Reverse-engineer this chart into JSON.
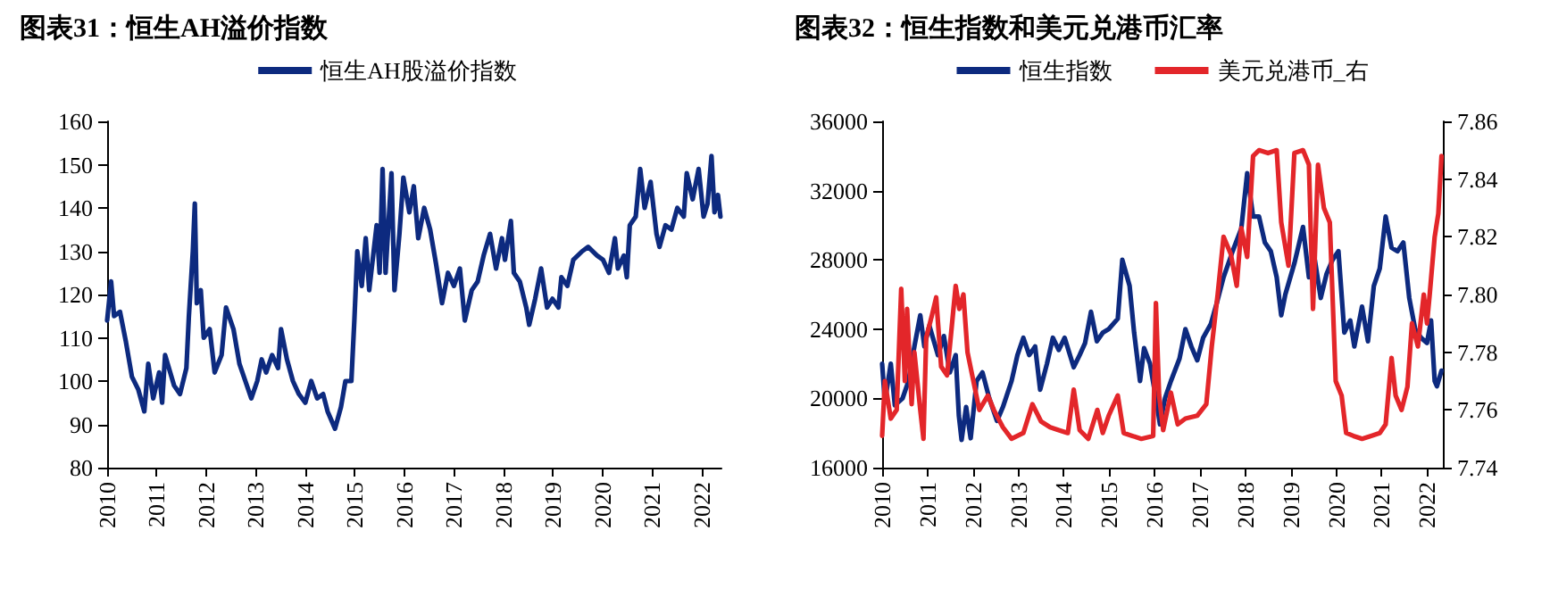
{
  "chart_data": [
    {
      "type": "line",
      "title": "图表31：恒生AH溢价指数",
      "legend": "top",
      "grid": false,
      "marker": "none",
      "line_style": "solid",
      "xlim": [
        2010,
        2022.4
      ],
      "xticks": [
        2010,
        2011,
        2012,
        2013,
        2014,
        2015,
        2016,
        2017,
        2018,
        2019,
        2020,
        2021,
        2022
      ],
      "ylim": [
        80,
        160
      ],
      "yticks": [
        80,
        90,
        100,
        110,
        120,
        130,
        140,
        150,
        160
      ],
      "series": [
        {
          "name": "恒生AH股溢价指数",
          "color": "#0d2a7f",
          "x": [
            2010,
            2010.08,
            2010.14,
            2010.26,
            2010.38,
            2010.5,
            2010.63,
            2010.75,
            2010.83,
            2010.93,
            2011.05,
            2011.11,
            2011.17,
            2011.35,
            2011.47,
            2011.6,
            2011.65,
            2011.73,
            2011.77,
            2011.81,
            2011.89,
            2011.95,
            2012.07,
            2012.17,
            2012.31,
            2012.4,
            2012.55,
            2012.67,
            2012.79,
            2012.91,
            2013.03,
            2013.12,
            2013.21,
            2013.33,
            2013.45,
            2013.51,
            2013.63,
            2013.75,
            2013.87,
            2014,
            2014.12,
            2014.24,
            2014.36,
            2014.45,
            2014.6,
            2014.72,
            2014.81,
            2014.93,
            2014.99,
            2015.05,
            2015.14,
            2015.22,
            2015.29,
            2015.44,
            2015.5,
            2015.56,
            2015.62,
            2015.74,
            2015.8,
            2015.9,
            2015.98,
            2016.1,
            2016.19,
            2016.28,
            2016.4,
            2016.52,
            2016.64,
            2016.76,
            2016.88,
            2017,
            2017.12,
            2017.22,
            2017.36,
            2017.48,
            2017.6,
            2017.73,
            2017.85,
            2017.97,
            2018.03,
            2018.15,
            2018.21,
            2018.33,
            2018.46,
            2018.52,
            2018.64,
            2018.76,
            2018.88,
            2018.99,
            2019.11,
            2019.17,
            2019.29,
            2019.41,
            2019.59,
            2019.71,
            2019.89,
            2020.01,
            2020.13,
            2020.25,
            2020.31,
            2020.43,
            2020.49,
            2020.55,
            2020.67,
            2020.76,
            2020.85,
            2020.97,
            2021.09,
            2021.15,
            2021.27,
            2021.39,
            2021.51,
            2021.64,
            2021.7,
            2021.82,
            2021.94,
            2022.04,
            2022.12,
            2022.2,
            2022.26,
            2022.33,
            2022.38
          ],
          "values": [
            114,
            123,
            115,
            116,
            109,
            101,
            98,
            93,
            104,
            96,
            102,
            95,
            106,
            99,
            97,
            103,
            115,
            130,
            141,
            118,
            121,
            110,
            112,
            102,
            106,
            117,
            112,
            104,
            100,
            96,
            100,
            105,
            102,
            106,
            103,
            112,
            105,
            100,
            97,
            95,
            100,
            96,
            97,
            93,
            89,
            94,
            100,
            100,
            114,
            130,
            122,
            133,
            121,
            136,
            125,
            149,
            125,
            148,
            121,
            134,
            147,
            139,
            145,
            133,
            140,
            135,
            127,
            118,
            125,
            122,
            126,
            114,
            121,
            123,
            129,
            134,
            126,
            133,
            128,
            137,
            125,
            123,
            117,
            113,
            119,
            126,
            117,
            119,
            117,
            124,
            122,
            128,
            130,
            131,
            129,
            128,
            125,
            133,
            126,
            129,
            124,
            136,
            138,
            149,
            140,
            146,
            134,
            131,
            136,
            135,
            140,
            138,
            148,
            142,
            149,
            138,
            141,
            152,
            139,
            143,
            138
          ]
        }
      ]
    },
    {
      "type": "line",
      "title": "图表32：恒生指数和美元兑港币汇率",
      "legend": "top",
      "grid": false,
      "marker": "none",
      "line_style": "solid",
      "xlim": [
        2010,
        2022.35
      ],
      "xticks": [
        2010,
        2011,
        2012,
        2013,
        2014,
        2015,
        2016,
        2017,
        2018,
        2019,
        2020,
        2021,
        2022
      ],
      "ylim": [
        16000,
        36000
      ],
      "yticks": [
        16000,
        20000,
        24000,
        28000,
        32000,
        36000
      ],
      "y2lim": [
        7.74,
        7.86
      ],
      "y2ticks": [
        {
          "value": 7.74,
          "label": "7.74"
        },
        {
          "value": 7.76,
          "label": "7.76"
        },
        {
          "value": 7.78,
          "label": "7.78"
        },
        {
          "value": 7.8,
          "label": "7.80"
        },
        {
          "value": 7.82,
          "label": "7.82"
        },
        {
          "value": 7.84,
          "label": "7.84"
        },
        {
          "value": 7.86,
          "label": "7.86"
        }
      ],
      "series": [
        {
          "name": "恒生指数",
          "color": "#0d2a7f",
          "x": [
            2010,
            2010.06,
            2010.19,
            2010.28,
            2010.45,
            2010.58,
            2010.71,
            2010.84,
            2010.93,
            2011.04,
            2011.23,
            2011.36,
            2011.49,
            2011.62,
            2011.69,
            2011.75,
            2011.85,
            2011.95,
            2012.08,
            2012.21,
            2012.36,
            2012.53,
            2012.66,
            2012.85,
            2012.98,
            2013.11,
            2013.24,
            2013.37,
            2013.48,
            2013.63,
            2013.76,
            2013.89,
            2014.02,
            2014.22,
            2014.35,
            2014.47,
            2014.6,
            2014.73,
            2014.86,
            2014.99,
            2015.19,
            2015.29,
            2015.45,
            2015.55,
            2015.68,
            2015.77,
            2015.9,
            2016.03,
            2016.12,
            2016.23,
            2016.36,
            2016.55,
            2016.68,
            2016.81,
            2016.94,
            2017.07,
            2017.24,
            2017.37,
            2017.52,
            2017.72,
            2017.91,
            2018.04,
            2018.17,
            2018.3,
            2018.43,
            2018.56,
            2018.69,
            2018.79,
            2018.88,
            2019.08,
            2019.27,
            2019.4,
            2019.53,
            2019.66,
            2019.79,
            2019.92,
            2020.05,
            2020.18,
            2020.31,
            2020.4,
            2020.57,
            2020.7,
            2020.83,
            2020.96,
            2021.09,
            2021.22,
            2021.35,
            2021.48,
            2021.61,
            2021.74,
            2021.87,
            2022,
            2022.09,
            2022.17,
            2022.22,
            2022.32
          ],
          "values": [
            22000,
            19800,
            22000,
            19600,
            20000,
            21000,
            23000,
            24800,
            23000,
            24200,
            22500,
            23600,
            21500,
            22500,
            19000,
            17600,
            19500,
            17700,
            21000,
            21500,
            20000,
            18700,
            19500,
            21000,
            22500,
            23500,
            22500,
            23000,
            20500,
            22000,
            23500,
            22800,
            23500,
            21800,
            22500,
            23200,
            25000,
            23300,
            23800,
            24000,
            24600,
            28000,
            26500,
            23800,
            21000,
            22900,
            22000,
            20000,
            18500,
            20000,
            21000,
            22300,
            24000,
            23000,
            22200,
            23500,
            24300,
            25500,
            27000,
            28500,
            29800,
            33000,
            30500,
            30500,
            29000,
            28500,
            27000,
            24800,
            26000,
            27800,
            29900,
            27000,
            28000,
            25800,
            27200,
            28000,
            28500,
            23800,
            24500,
            23000,
            25300,
            23300,
            26500,
            27500,
            30500,
            28700,
            28500,
            29000,
            25800,
            24000,
            23500,
            23200,
            24500,
            21000,
            20700,
            21600
          ]
        },
        {
          "name": "美元兑港币_右",
          "color": "#e3262a",
          "axis": "y2",
          "x": [
            2010,
            2010.06,
            2010.19,
            2010.32,
            2010.42,
            2010.5,
            2010.55,
            2010.65,
            2010.71,
            2010.84,
            2010.91,
            2010.97,
            2011.1,
            2011.19,
            2011.3,
            2011.43,
            2011.62,
            2011.7,
            2011.79,
            2011.88,
            2012.01,
            2012.14,
            2012.33,
            2012.46,
            2012.66,
            2012.85,
            2013.11,
            2013.31,
            2013.5,
            2013.7,
            2013.89,
            2014.09,
            2014.22,
            2014.35,
            2014.54,
            2014.74,
            2014.86,
            2014.99,
            2015.19,
            2015.32,
            2015.51,
            2015.71,
            2015.97,
            2016.03,
            2016.1,
            2016.19,
            2016.36,
            2016.51,
            2016.68,
            2016.94,
            2017.14,
            2017.26,
            2017.39,
            2017.52,
            2017.68,
            2017.81,
            2017.91,
            2018.04,
            2018.17,
            2018.3,
            2018.5,
            2018.69,
            2018.79,
            2018.95,
            2019.08,
            2019.27,
            2019.4,
            2019.49,
            2019.6,
            2019.73,
            2019.86,
            2019.99,
            2020.12,
            2020.22,
            2020.38,
            2020.57,
            2020.77,
            2020.96,
            2021.09,
            2021.22,
            2021.31,
            2021.44,
            2021.57,
            2021.67,
            2021.8,
            2021.93,
            2022,
            2022.06,
            2022.17,
            2022.25,
            2022.32
          ],
          "values": [
            7.751,
            7.77,
            7.757,
            7.76,
            7.802,
            7.77,
            7.795,
            7.762,
            7.78,
            7.76,
            7.75,
            7.785,
            7.793,
            7.799,
            7.775,
            7.772,
            7.803,
            7.795,
            7.8,
            7.78,
            7.77,
            7.76,
            7.765,
            7.76,
            7.754,
            7.75,
            7.752,
            7.762,
            7.756,
            7.754,
            7.753,
            7.752,
            7.767,
            7.753,
            7.75,
            7.76,
            7.752,
            7.758,
            7.765,
            7.752,
            7.751,
            7.75,
            7.751,
            7.797,
            7.765,
            7.753,
            7.766,
            7.755,
            7.757,
            7.758,
            7.762,
            7.782,
            7.8,
            7.82,
            7.814,
            7.803,
            7.823,
            7.813,
            7.848,
            7.85,
            7.849,
            7.85,
            7.825,
            7.81,
            7.849,
            7.85,
            7.845,
            7.795,
            7.845,
            7.83,
            7.825,
            7.77,
            7.765,
            7.752,
            7.751,
            7.75,
            7.751,
            7.752,
            7.755,
            7.778,
            7.765,
            7.76,
            7.768,
            7.79,
            7.782,
            7.8,
            7.79,
            7.8,
            7.82,
            7.828,
            7.848
          ]
        }
      ]
    }
  ]
}
